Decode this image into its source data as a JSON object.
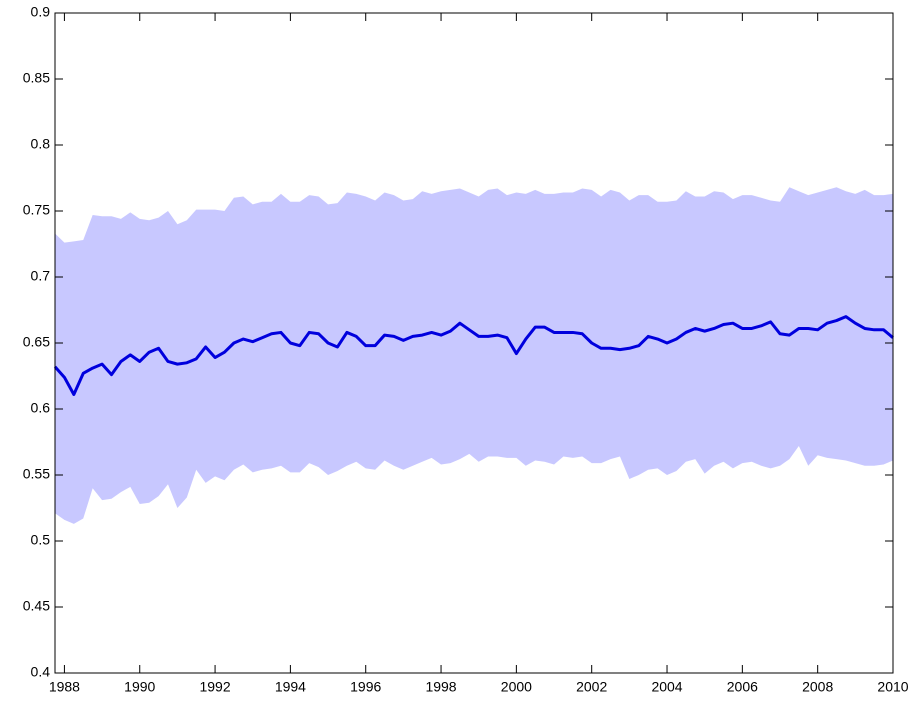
{
  "chart_data": {
    "type": "line",
    "x": [
      1987.75,
      1988,
      1988.25,
      1988.5,
      1988.75,
      1989,
      1989.25,
      1989.5,
      1989.75,
      1990,
      1990.25,
      1990.5,
      1990.75,
      1991,
      1991.25,
      1991.5,
      1991.75,
      1992,
      1992.25,
      1992.5,
      1992.75,
      1993,
      1993.25,
      1993.5,
      1993.75,
      1994,
      1994.25,
      1994.5,
      1994.75,
      1995,
      1995.25,
      1995.5,
      1995.75,
      1996,
      1996.25,
      1996.5,
      1996.75,
      1997,
      1997.25,
      1997.5,
      1997.75,
      1998,
      1998.25,
      1998.5,
      1998.75,
      1999,
      1999.25,
      1999.5,
      1999.75,
      2000,
      2000.25,
      2000.5,
      2000.75,
      2001,
      2001.25,
      2001.5,
      2001.75,
      2002,
      2002.25,
      2002.5,
      2002.75,
      2003,
      2003.25,
      2003.5,
      2003.75,
      2004,
      2004.25,
      2004.5,
      2004.75,
      2005,
      2005.25,
      2005.5,
      2005.75,
      2006,
      2006.25,
      2006.5,
      2006.75,
      2007,
      2007.25,
      2007.5,
      2007.75,
      2008,
      2008.25,
      2008.5,
      2008.75,
      2009,
      2009.25,
      2009.5,
      2009.75,
      2010
    ],
    "series": [
      {
        "color": "#0000dd",
        "values": [
          0.632,
          0.624,
          0.611,
          0.627,
          0.631,
          0.634,
          0.626,
          0.636,
          0.641,
          0.636,
          0.643,
          0.646,
          0.636,
          0.634,
          0.635,
          0.638,
          0.647,
          0.639,
          0.643,
          0.65,
          0.653,
          0.651,
          0.654,
          0.657,
          0.658,
          0.65,
          0.648,
          0.658,
          0.657,
          0.65,
          0.647,
          0.658,
          0.655,
          0.648,
          0.648,
          0.656,
          0.655,
          0.652,
          0.655,
          0.656,
          0.658,
          0.656,
          0.659,
          0.665,
          0.66,
          0.655,
          0.655,
          0.656,
          0.654,
          0.642,
          0.653,
          0.662,
          0.662,
          0.658,
          0.658,
          0.658,
          0.657,
          0.65,
          0.646,
          0.646,
          0.645,
          0.646,
          0.648,
          0.655,
          0.653,
          0.65,
          0.653,
          0.658,
          0.661,
          0.659,
          0.661,
          0.664,
          0.665,
          0.661,
          0.661,
          0.663,
          0.666,
          0.657,
          0.656,
          0.661,
          0.661,
          0.66,
          0.665,
          0.667,
          0.67,
          0.665,
          0.661,
          0.66,
          0.66,
          0.654
        ]
      }
    ],
    "band": {
      "color": "#c8c8ff",
      "upper": [
        0.733,
        0.726,
        0.727,
        0.728,
        0.747,
        0.746,
        0.746,
        0.744,
        0.749,
        0.744,
        0.743,
        0.745,
        0.75,
        0.74,
        0.743,
        0.751,
        0.751,
        0.751,
        0.75,
        0.76,
        0.761,
        0.755,
        0.757,
        0.757,
        0.763,
        0.757,
        0.757,
        0.762,
        0.761,
        0.755,
        0.756,
        0.764,
        0.763,
        0.761,
        0.758,
        0.764,
        0.762,
        0.758,
        0.759,
        0.765,
        0.763,
        0.765,
        0.766,
        0.767,
        0.764,
        0.761,
        0.766,
        0.767,
        0.762,
        0.764,
        0.763,
        0.766,
        0.763,
        0.763,
        0.764,
        0.764,
        0.767,
        0.766,
        0.761,
        0.766,
        0.764,
        0.758,
        0.762,
        0.762,
        0.757,
        0.757,
        0.758,
        0.765,
        0.761,
        0.761,
        0.765,
        0.764,
        0.759,
        0.762,
        0.762,
        0.76,
        0.758,
        0.757,
        0.768,
        0.765,
        0.762,
        0.764,
        0.766,
        0.768,
        0.765,
        0.763,
        0.766,
        0.762,
        0.762,
        0.763
      ],
      "lower": [
        0.521,
        0.516,
        0.513,
        0.517,
        0.54,
        0.531,
        0.532,
        0.537,
        0.541,
        0.528,
        0.529,
        0.534,
        0.543,
        0.525,
        0.533,
        0.554,
        0.544,
        0.549,
        0.546,
        0.554,
        0.558,
        0.552,
        0.554,
        0.555,
        0.557,
        0.552,
        0.552,
        0.559,
        0.556,
        0.55,
        0.553,
        0.557,
        0.56,
        0.555,
        0.554,
        0.561,
        0.557,
        0.554,
        0.557,
        0.56,
        0.563,
        0.558,
        0.559,
        0.562,
        0.566,
        0.56,
        0.564,
        0.564,
        0.563,
        0.563,
        0.557,
        0.561,
        0.56,
        0.558,
        0.564,
        0.563,
        0.564,
        0.559,
        0.559,
        0.562,
        0.564,
        0.547,
        0.55,
        0.554,
        0.555,
        0.55,
        0.553,
        0.56,
        0.562,
        0.551,
        0.557,
        0.56,
        0.555,
        0.559,
        0.56,
        0.557,
        0.555,
        0.557,
        0.562,
        0.572,
        0.557,
        0.565,
        0.563,
        0.562,
        0.561,
        0.559,
        0.557,
        0.557,
        0.558,
        0.561
      ]
    },
    "xlim": [
      1987.75,
      2010
    ],
    "xticks": [
      1988,
      1990,
      1992,
      1994,
      1996,
      1998,
      2000,
      2002,
      2004,
      2006,
      2008,
      2010
    ],
    "ylim": [
      0.4,
      0.9
    ],
    "yticks": [
      0.4,
      0.45,
      0.5,
      0.55,
      0.6,
      0.65,
      0.7,
      0.75,
      0.8,
      0.85,
      0.9
    ]
  }
}
